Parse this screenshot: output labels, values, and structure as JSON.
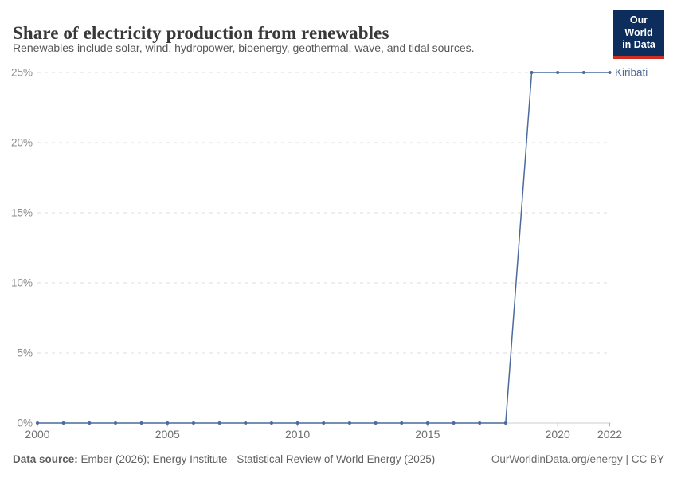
{
  "header": {
    "title": "Share of electricity production from renewables",
    "subtitle": "Renewables include solar, wind, hydropower, bioenergy, geothermal, wave, and tidal sources.",
    "logo": {
      "line1": "Our World",
      "line2": "in Data"
    }
  },
  "chart_data": {
    "type": "line",
    "title": "Share of electricity production from renewables",
    "xlabel": "",
    "ylabel": "",
    "xlim": [
      2000,
      2022
    ],
    "ylim": [
      0,
      25
    ],
    "grid": "horizontal-dashed",
    "legend_position": "end-of-line-label",
    "x_ticks": [
      2000,
      2005,
      2010,
      2015,
      2020,
      2022
    ],
    "y_ticks": [
      0,
      5,
      10,
      15,
      20,
      25
    ],
    "y_tick_labels": [
      "0%",
      "5%",
      "10%",
      "15%",
      "20%",
      "25%"
    ],
    "x": [
      2000,
      2001,
      2002,
      2003,
      2004,
      2005,
      2006,
      2007,
      2008,
      2009,
      2010,
      2011,
      2012,
      2013,
      2014,
      2015,
      2016,
      2017,
      2018,
      2019,
      2020,
      2021,
      2022
    ],
    "series": [
      {
        "name": "Kiribati",
        "color": "#4C6A9C",
        "values": [
          0,
          0,
          0,
          0,
          0,
          0,
          0,
          0,
          0,
          0,
          0,
          0,
          0,
          0,
          0,
          0,
          0,
          0,
          0,
          25,
          25,
          25,
          25
        ]
      }
    ],
    "colors": {
      "gridline": "#dddddd",
      "axis_line": "#cccccc",
      "tick_mark": "#b3b3b3",
      "y_tick_label": "#8b8b8b",
      "x_tick_label": "#707070"
    }
  },
  "footer": {
    "source_label": "Data source:",
    "source_text": " Ember (2026); Energy Institute - Statistical Review of World Energy (2025)",
    "credit": "OurWorldinData.org/energy | CC BY"
  }
}
